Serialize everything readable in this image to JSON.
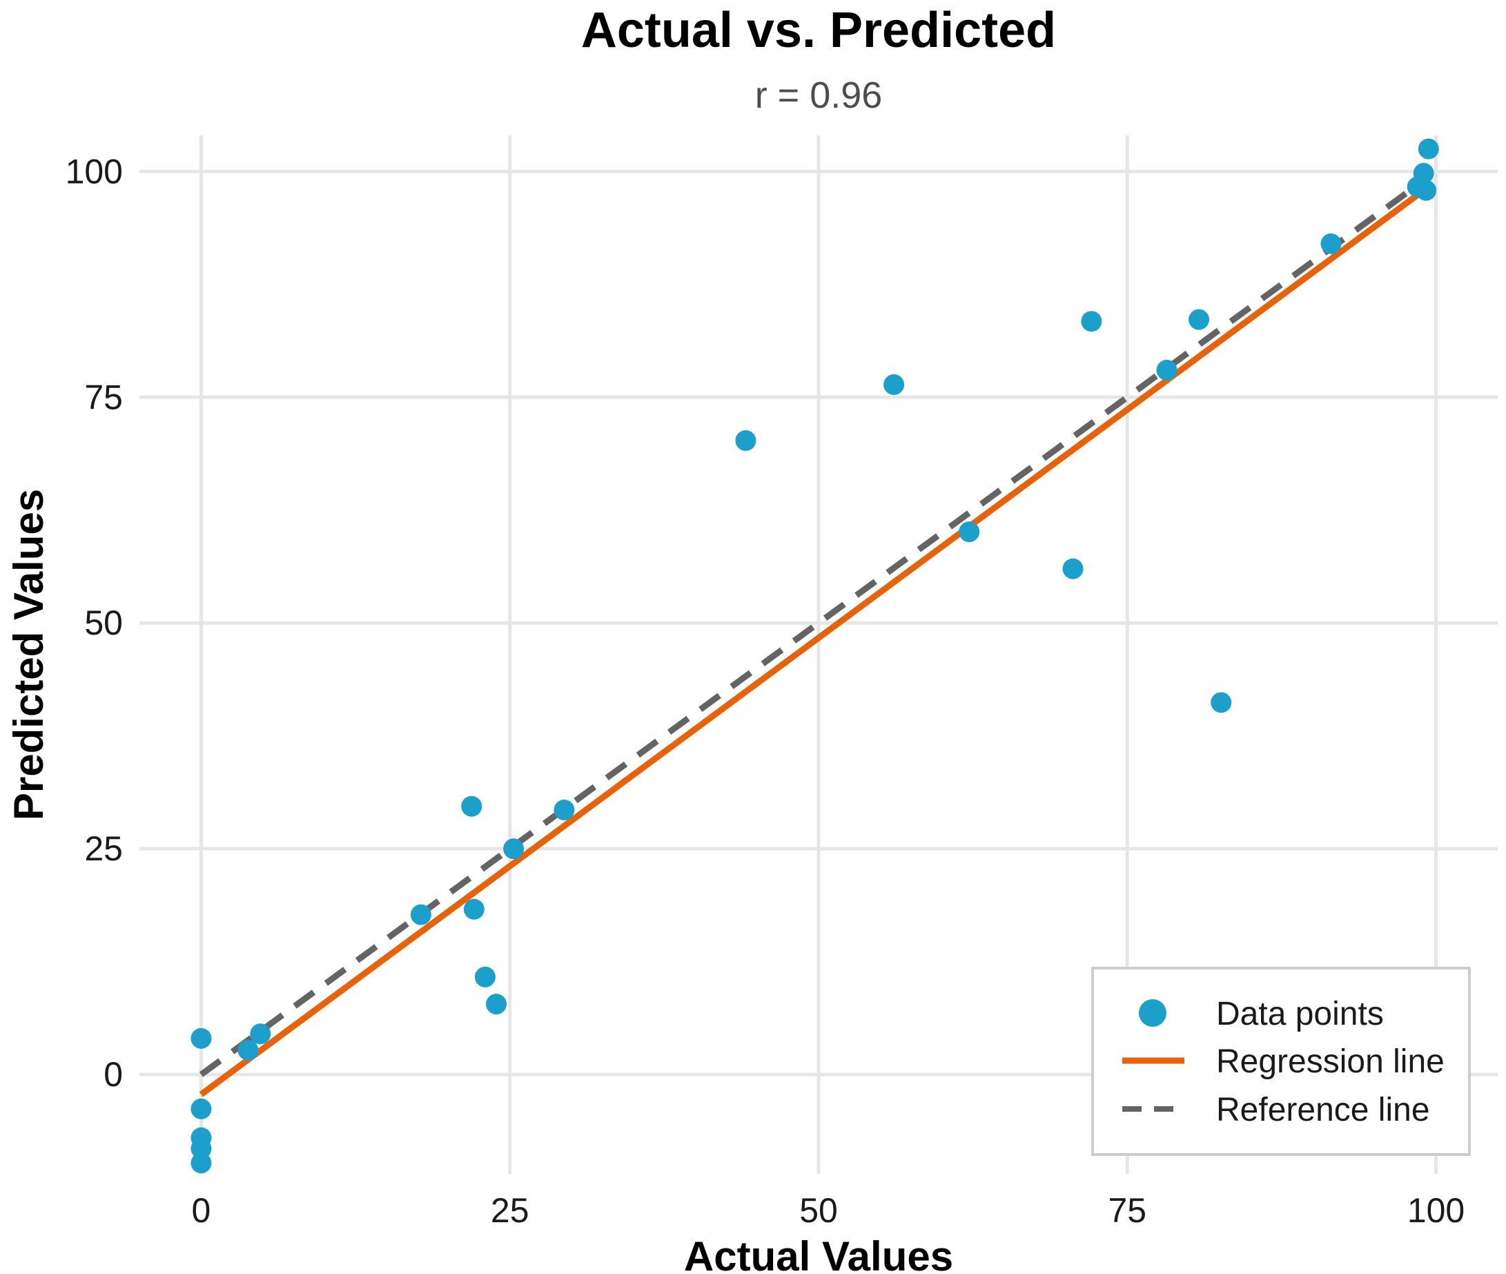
{
  "colors": {
    "points": "#1c9fcb",
    "regression": "#e8620a",
    "reference": "#646464",
    "grid": "#e6e6e6"
  },
  "chart_data": {
    "type": "scatter",
    "title": "Actual vs. Predicted",
    "subtitle": "r = 0.96",
    "xlabel": "Actual Values",
    "ylabel": "Predicted Values",
    "xlim": [
      -5,
      105
    ],
    "ylim": [
      -11,
      104
    ],
    "xticks": [
      0,
      25,
      50,
      75,
      100
    ],
    "yticks": [
      0,
      25,
      50,
      75,
      100
    ],
    "xtick_labels": [
      "0",
      "25",
      "50",
      "75",
      "100"
    ],
    "ytick_labels": [
      "0",
      "25",
      "50",
      "75",
      "100"
    ],
    "grid": true,
    "legend_position": "bottom-right",
    "legend": [
      "Data points",
      "Regression line",
      "Reference line"
    ],
    "points": [
      {
        "x": 0.0,
        "y": 4.0
      },
      {
        "x": 0.0,
        "y": -3.8
      },
      {
        "x": 0.0,
        "y": -7.0
      },
      {
        "x": 0.0,
        "y": -8.2
      },
      {
        "x": 0.0,
        "y": -9.8
      },
      {
        "x": 3.8,
        "y": 2.7
      },
      {
        "x": 4.8,
        "y": 4.5
      },
      {
        "x": 17.8,
        "y": 17.7
      },
      {
        "x": 21.9,
        "y": 29.7
      },
      {
        "x": 22.1,
        "y": 18.3
      },
      {
        "x": 23.0,
        "y": 10.8
      },
      {
        "x": 23.9,
        "y": 7.8
      },
      {
        "x": 25.3,
        "y": 25.0
      },
      {
        "x": 29.4,
        "y": 29.3
      },
      {
        "x": 44.1,
        "y": 70.2
      },
      {
        "x": 56.1,
        "y": 76.4
      },
      {
        "x": 62.2,
        "y": 60.1
      },
      {
        "x": 70.6,
        "y": 56.0
      },
      {
        "x": 72.1,
        "y": 83.4
      },
      {
        "x": 78.2,
        "y": 78.0
      },
      {
        "x": 80.8,
        "y": 83.6
      },
      {
        "x": 82.6,
        "y": 41.2
      },
      {
        "x": 91.5,
        "y": 92.0
      },
      {
        "x": 98.5,
        "y": 98.3
      },
      {
        "x": 99.0,
        "y": 99.8
      },
      {
        "x": 99.2,
        "y": 97.9
      },
      {
        "x": 99.4,
        "y": 102.5
      }
    ],
    "regression_line": {
      "x": [
        0,
        99.4
      ],
      "y": [
        -2.2,
        98.3
      ]
    },
    "reference_line": {
      "x": [
        0,
        99.4
      ],
      "y": [
        0,
        99.4
      ]
    }
  }
}
